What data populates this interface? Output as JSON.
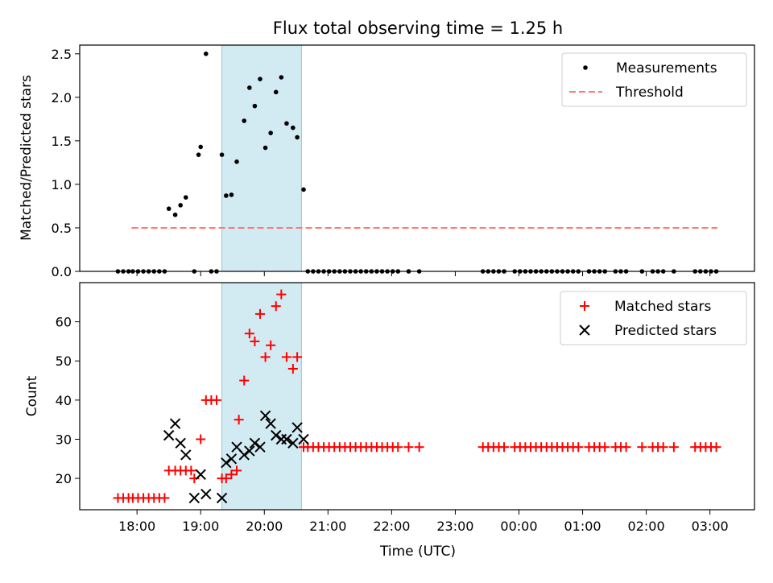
{
  "chart_data": {
    "title": "Flux total observing time = 1.25 h",
    "xlabel": "Time (UTC)",
    "x_tick_labels": [
      "18:00",
      "19:00",
      "20:00",
      "21:00",
      "22:00",
      "23:00",
      "00:00",
      "01:00",
      "02:00",
      "03:00"
    ],
    "x_range_hours": [
      17.1,
      27.7
    ],
    "highlight_span": {
      "start": "19:20",
      "end": "20:35",
      "color": "#add8e6"
    },
    "panels": [
      {
        "type": "scatter",
        "ylabel": "Matched/Predicted stars",
        "ylim": [
          0,
          2.6
        ],
        "yticks": [
          0.0,
          0.5,
          1.0,
          1.5,
          2.0,
          2.5
        ],
        "ytick_labels": [
          "0.0",
          "0.5",
          "1.0",
          "1.5",
          "2.0",
          "2.5"
        ],
        "legend_position": "top-right",
        "threshold": {
          "name": "Threshold",
          "y": 0.5,
          "x_start": "17:55",
          "x_end": "03:07",
          "color": "#ff7777",
          "style": "dashed"
        },
        "series": [
          {
            "name": "Measurements",
            "marker": "dot",
            "color": "#000000",
            "points": [
              [
                "17:42",
                0
              ],
              [
                "17:47",
                0
              ],
              [
                "17:52",
                0
              ],
              [
                "17:56",
                0
              ],
              [
                "18:01",
                0
              ],
              [
                "18:06",
                0
              ],
              [
                "18:11",
                0
              ],
              [
                "18:16",
                0
              ],
              [
                "18:21",
                0
              ],
              [
                "18:26",
                0
              ],
              [
                "18:30",
                0.72
              ],
              [
                "18:36",
                0.65
              ],
              [
                "18:41",
                0.76
              ],
              [
                "18:46",
                0.85
              ],
              [
                "18:54",
                0
              ],
              [
                "18:58",
                1.34
              ],
              [
                "19:00",
                1.43
              ],
              [
                "19:05",
                2.5
              ],
              [
                "19:10",
                0
              ],
              [
                "19:15",
                0
              ],
              [
                "19:20",
                1.34
              ],
              [
                "19:24",
                0.87
              ],
              [
                "19:29",
                0.88
              ],
              [
                "19:34",
                1.26
              ],
              [
                "19:41",
                1.73
              ],
              [
                "19:46",
                2.11
              ],
              [
                "19:51",
                1.9
              ],
              [
                "19:56",
                2.21
              ],
              [
                "20:01",
                1.42
              ],
              [
                "20:06",
                1.59
              ],
              [
                "20:11",
                2.06
              ],
              [
                "20:16",
                2.23
              ],
              [
                "20:21",
                1.7
              ],
              [
                "20:27",
                1.65
              ],
              [
                "20:31",
                1.54
              ],
              [
                "20:37",
                0.94
              ],
              [
                "20:41",
                0
              ],
              [
                "20:46",
                0
              ],
              [
                "20:51",
                0
              ],
              [
                "20:56",
                0
              ],
              [
                "21:01",
                0
              ],
              [
                "21:06",
                0
              ],
              [
                "21:11",
                0
              ],
              [
                "21:16",
                0
              ],
              [
                "21:21",
                0
              ],
              [
                "21:26",
                0
              ],
              [
                "21:31",
                0
              ],
              [
                "21:36",
                0
              ],
              [
                "21:41",
                0
              ],
              [
                "21:46",
                0
              ],
              [
                "21:51",
                0
              ],
              [
                "21:56",
                0
              ],
              [
                "22:01",
                0
              ],
              [
                "22:06",
                0
              ],
              [
                "22:16",
                0
              ],
              [
                "22:26",
                0
              ],
              [
                "23:26",
                0
              ],
              [
                "23:31",
                0
              ],
              [
                "23:36",
                0
              ],
              [
                "23:41",
                0
              ],
              [
                "23:46",
                0
              ],
              [
                "23:56",
                0
              ],
              [
                "00:01",
                0
              ],
              [
                "00:06",
                0
              ],
              [
                "00:11",
                0
              ],
              [
                "00:16",
                0
              ],
              [
                "00:21",
                0
              ],
              [
                "00:26",
                0
              ],
              [
                "00:31",
                0
              ],
              [
                "00:36",
                0
              ],
              [
                "00:41",
                0
              ],
              [
                "00:46",
                0
              ],
              [
                "00:51",
                0
              ],
              [
                "00:56",
                0
              ],
              [
                "01:06",
                0
              ],
              [
                "01:11",
                0
              ],
              [
                "01:16",
                0
              ],
              [
                "01:21",
                0
              ],
              [
                "01:31",
                0
              ],
              [
                "01:36",
                0
              ],
              [
                "01:41",
                0
              ],
              [
                "01:56",
                0
              ],
              [
                "02:06",
                0
              ],
              [
                "02:11",
                0
              ],
              [
                "02:16",
                0
              ],
              [
                "02:26",
                0
              ],
              [
                "02:46",
                0
              ],
              [
                "02:51",
                0
              ],
              [
                "02:56",
                0
              ],
              [
                "03:01",
                0
              ],
              [
                "03:06",
                0
              ]
            ]
          }
        ]
      },
      {
        "type": "scatter",
        "ylabel": "Count",
        "ylim": [
          12,
          70
        ],
        "yticks": [
          20,
          30,
          40,
          50,
          60
        ],
        "ytick_labels": [
          "20",
          "30",
          "40",
          "50",
          "60"
        ],
        "legend_position": "top-right",
        "series": [
          {
            "name": "Matched stars",
            "marker": "plus",
            "color": "#ff0000",
            "points": [
              [
                "17:42",
                15
              ],
              [
                "17:47",
                15
              ],
              [
                "17:52",
                15
              ],
              [
                "17:56",
                15
              ],
              [
                "18:01",
                15
              ],
              [
                "18:06",
                15
              ],
              [
                "18:11",
                15
              ],
              [
                "18:16",
                15
              ],
              [
                "18:21",
                15
              ],
              [
                "18:26",
                15
              ],
              [
                "18:30",
                22
              ],
              [
                "18:36",
                22
              ],
              [
                "18:41",
                22
              ],
              [
                "18:46",
                22
              ],
              [
                "18:51",
                22
              ],
              [
                "18:54",
                20
              ],
              [
                "19:00",
                30
              ],
              [
                "19:05",
                40
              ],
              [
                "19:10",
                40
              ],
              [
                "19:15",
                40
              ],
              [
                "19:20",
                20
              ],
              [
                "19:24",
                20
              ],
              [
                "19:29",
                21
              ],
              [
                "19:34",
                22
              ],
              [
                "19:36",
                35
              ],
              [
                "19:41",
                45
              ],
              [
                "19:46",
                57
              ],
              [
                "19:51",
                55
              ],
              [
                "19:56",
                62
              ],
              [
                "20:01",
                51
              ],
              [
                "20:06",
                54
              ],
              [
                "20:11",
                64
              ],
              [
                "20:16",
                67
              ],
              [
                "20:21",
                51
              ],
              [
                "20:27",
                48
              ],
              [
                "20:31",
                51
              ],
              [
                "20:37",
                28
              ],
              [
                "20:41",
                28
              ],
              [
                "20:46",
                28
              ],
              [
                "20:51",
                28
              ],
              [
                "20:56",
                28
              ],
              [
                "21:01",
                28
              ],
              [
                "21:06",
                28
              ],
              [
                "21:11",
                28
              ],
              [
                "21:16",
                28
              ],
              [
                "21:21",
                28
              ],
              [
                "21:26",
                28
              ],
              [
                "21:31",
                28
              ],
              [
                "21:36",
                28
              ],
              [
                "21:41",
                28
              ],
              [
                "21:46",
                28
              ],
              [
                "21:51",
                28
              ],
              [
                "21:56",
                28
              ],
              [
                "22:01",
                28
              ],
              [
                "22:06",
                28
              ],
              [
                "22:16",
                28
              ],
              [
                "22:26",
                28
              ],
              [
                "23:26",
                28
              ],
              [
                "23:31",
                28
              ],
              [
                "23:36",
                28
              ],
              [
                "23:41",
                28
              ],
              [
                "23:46",
                28
              ],
              [
                "23:56",
                28
              ],
              [
                "00:01",
                28
              ],
              [
                "00:06",
                28
              ],
              [
                "00:11",
                28
              ],
              [
                "00:16",
                28
              ],
              [
                "00:21",
                28
              ],
              [
                "00:26",
                28
              ],
              [
                "00:31",
                28
              ],
              [
                "00:36",
                28
              ],
              [
                "00:41",
                28
              ],
              [
                "00:46",
                28
              ],
              [
                "00:51",
                28
              ],
              [
                "00:56",
                28
              ],
              [
                "01:06",
                28
              ],
              [
                "01:11",
                28
              ],
              [
                "01:16",
                28
              ],
              [
                "01:21",
                28
              ],
              [
                "01:31",
                28
              ],
              [
                "01:36",
                28
              ],
              [
                "01:41",
                28
              ],
              [
                "01:56",
                28
              ],
              [
                "02:06",
                28
              ],
              [
                "02:11",
                28
              ],
              [
                "02:16",
                28
              ],
              [
                "02:26",
                28
              ],
              [
                "02:46",
                28
              ],
              [
                "02:51",
                28
              ],
              [
                "02:56",
                28
              ],
              [
                "03:01",
                28
              ],
              [
                "03:06",
                28
              ]
            ]
          },
          {
            "name": "Predicted stars",
            "marker": "x",
            "color": "#000000",
            "points": [
              [
                "18:30",
                31
              ],
              [
                "18:36",
                34
              ],
              [
                "18:41",
                29
              ],
              [
                "18:46",
                26
              ],
              [
                "18:54",
                15
              ],
              [
                "19:00",
                21
              ],
              [
                "19:05",
                16
              ],
              [
                "19:20",
                15
              ],
              [
                "19:24",
                24
              ],
              [
                "19:29",
                25
              ],
              [
                "19:34",
                28
              ],
              [
                "19:41",
                26
              ],
              [
                "19:46",
                27
              ],
              [
                "19:51",
                29
              ],
              [
                "19:56",
                28
              ],
              [
                "20:01",
                36
              ],
              [
                "20:06",
                34
              ],
              [
                "20:11",
                31
              ],
              [
                "20:16",
                30
              ],
              [
                "20:21",
                30
              ],
              [
                "20:27",
                29
              ],
              [
                "20:31",
                33
              ],
              [
                "20:37",
                30
              ]
            ]
          }
        ]
      }
    ]
  }
}
